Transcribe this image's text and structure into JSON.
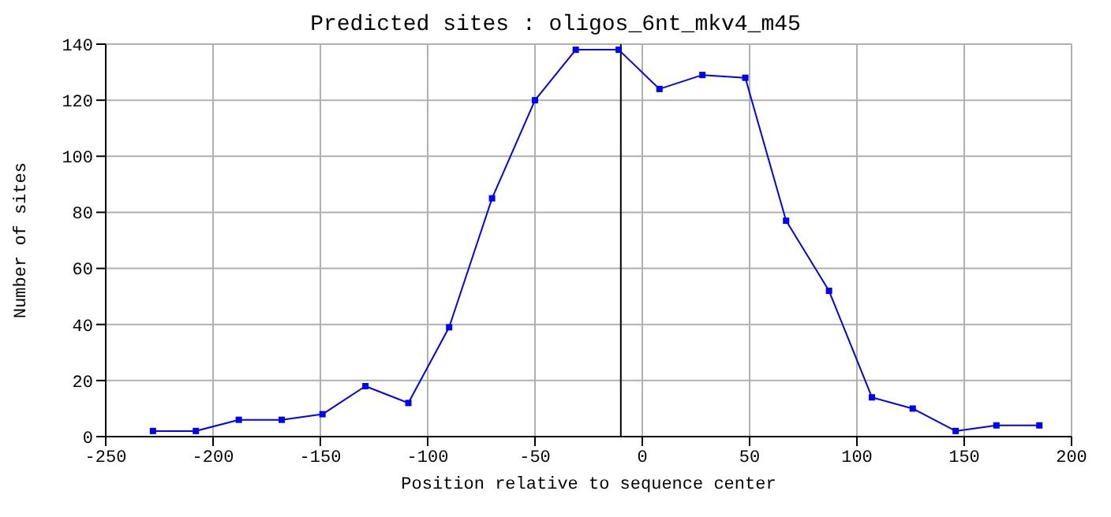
{
  "chart_data": {
    "type": "line",
    "title": "Predicted sites : oligos_6nt_mkv4_m45",
    "xlabel": "Position relative to sequence center",
    "ylabel": "Number of sites",
    "x": [
      -228,
      -208,
      -188,
      -168,
      -149,
      -129,
      -109,
      -90,
      -70,
      -50,
      -31,
      -11,
      8,
      28,
      48,
      67,
      87,
      107,
      126,
      146,
      165,
      185
    ],
    "series": [
      {
        "color": "#0000ff",
        "values": [
          2,
          2,
          6,
          6,
          8,
          18,
          12,
          39,
          85,
          120,
          138,
          138,
          124,
          129,
          128,
          77,
          52,
          14,
          10,
          2,
          4,
          4
        ]
      }
    ],
    "xlim": [
      -250,
      200
    ],
    "xticks": [
      -250,
      -200,
      -150,
      -100,
      -50,
      0,
      50,
      100,
      150,
      200
    ],
    "ylim": [
      0,
      140
    ],
    "yticks": [
      0,
      20,
      40,
      60,
      80,
      100,
      120,
      140
    ],
    "ref_lines": [
      {
        "axis": "x",
        "value": -10,
        "color": "#000000"
      }
    ],
    "grid": true,
    "marker": "square",
    "line_style": "solid"
  }
}
